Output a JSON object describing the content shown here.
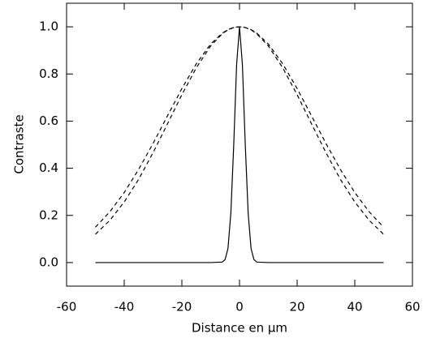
{
  "chart_data": {
    "type": "line",
    "xlabel": "Distance en μm",
    "ylabel": "Contraste",
    "x": [
      -50,
      -45,
      -40,
      -35,
      -30,
      -25,
      -20,
      -15,
      -10,
      -6,
      -5,
      -4,
      -3,
      -2,
      -1,
      0,
      1,
      2,
      3,
      4,
      5,
      6,
      10,
      15,
      20,
      25,
      30,
      35,
      40,
      45,
      50
    ],
    "series": [
      {
        "color": "#000000",
        "dash": false,
        "values": [
          0,
          0,
          0,
          0,
          0,
          0,
          0,
          0,
          0,
          0.002,
          0.013,
          0.06,
          0.21,
          0.5,
          0.84,
          1,
          0.84,
          0.5,
          0.21,
          0.06,
          0.013,
          0.002,
          0,
          0,
          0,
          0,
          0,
          0,
          0,
          0,
          0
        ]
      },
      {
        "color": "#000000",
        "dash": true,
        "values": [
          0.15,
          0.215,
          0.297,
          0.395,
          0.505,
          0.622,
          0.738,
          0.843,
          0.927,
          0.973,
          0.981,
          0.988,
          0.993,
          0.997,
          0.999,
          1,
          0.999,
          0.997,
          0.993,
          0.988,
          0.981,
          0.973,
          0.927,
          0.843,
          0.738,
          0.622,
          0.505,
          0.395,
          0.297,
          0.215,
          0.15
        ]
      },
      {
        "color": "#000000",
        "dash": true,
        "values": [
          0.12,
          0.179,
          0.257,
          0.353,
          0.466,
          0.588,
          0.712,
          0.826,
          0.919,
          0.97,
          0.979,
          0.987,
          0.992,
          0.997,
          0.999,
          1,
          0.999,
          0.997,
          0.992,
          0.987,
          0.979,
          0.97,
          0.919,
          0.826,
          0.712,
          0.588,
          0.466,
          0.353,
          0.257,
          0.179,
          0.12
        ]
      }
    ],
    "xlim": [
      -60,
      60
    ],
    "xticks": [
      -60,
      -40,
      -20,
      0,
      20,
      40,
      60
    ],
    "ylim": [
      -0.1,
      1.1
    ],
    "yticks": [
      {
        "value": 0,
        "label": "0.0"
      },
      {
        "value": 0.2,
        "label": "0.2"
      },
      {
        "value": 0.4,
        "label": "0.4"
      },
      {
        "value": 0.6,
        "label": "0.6"
      },
      {
        "value": 0.8,
        "label": "0.8"
      },
      {
        "value": 1,
        "label": "1.0"
      }
    ]
  }
}
